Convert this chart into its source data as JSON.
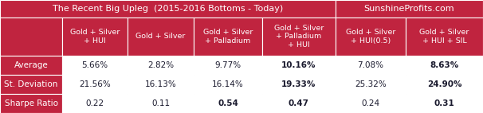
{
  "title_left": "The Recent Big Upleg  (2015-2016 Bottoms - Today)",
  "title_right": "SunshineProfits.com",
  "col_headers": [
    "Gold + Silver\n+ HUI",
    "Gold + Silver",
    "Gold + Silver\n+ Palladium",
    "Gold + Silver\n+ Palladium\n+ HUI",
    "Gold + Silver\n+ HUI(0.5)",
    "Gold + Silver\n+ HUI + SIL"
  ],
  "row_headers": [
    "Average",
    "St. Deviation",
    "Sharpe Ratio"
  ],
  "data": [
    [
      "5.66%",
      "2.82%",
      "9.77%",
      "10.16%",
      "7.08%",
      "8.63%"
    ],
    [
      "21.56%",
      "16.13%",
      "16.14%",
      "19.33%",
      "25.32%",
      "24.90%"
    ],
    [
      "0.22",
      "0.11",
      "0.54",
      "0.47",
      "0.24",
      "0.31"
    ]
  ],
  "bold_data": [
    [
      3,
      5
    ],
    [
      3,
      5
    ],
    [
      2,
      3,
      5
    ]
  ],
  "header_bg": "#C0243F",
  "white": "#FFFFFF",
  "cell_text_color": "#1a1a2e",
  "title_fontsize": 8.0,
  "header_fontsize": 6.8,
  "cell_fontsize": 7.5,
  "row_header_fontsize": 7.5
}
